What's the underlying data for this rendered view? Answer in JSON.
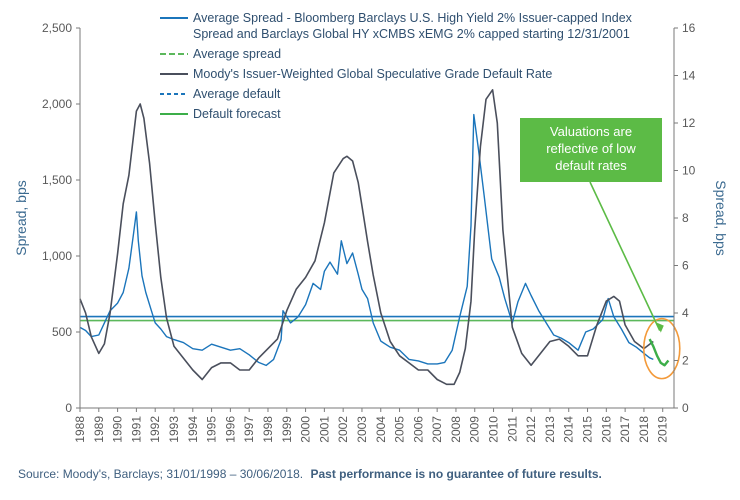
{
  "chart_data": {
    "type": "line",
    "title": "",
    "y_left_label": "Spread, bps",
    "y_right_label": "Spread, bps",
    "y_left_range": [
      0,
      2500
    ],
    "y_left_ticks": [
      "0",
      "500",
      "1,000",
      "1,500",
      "2,000",
      "2,500"
    ],
    "y_right_range": [
      0,
      16
    ],
    "y_right_ticks": [
      "0",
      "2",
      "4",
      "6",
      "8",
      "10",
      "12",
      "14",
      "16"
    ],
    "x_range": [
      1988,
      2019.6
    ],
    "x_ticks": [
      "1988",
      "1989",
      "1990",
      "1991",
      "1992",
      "1993",
      "1994",
      "1995",
      "1996",
      "1997",
      "1998",
      "1999",
      "2000",
      "2001",
      "2002",
      "2003",
      "2004",
      "2005",
      "2006",
      "2007",
      "2008",
      "2009",
      "2010",
      "2011",
      "2012",
      "2013",
      "2014",
      "2015",
      "2016",
      "2017",
      "2018",
      "2019"
    ],
    "grid": false,
    "legend_position": "top",
    "colors": {
      "spread": "#1b75bb",
      "avg_spread": "#5cb85c",
      "default_rate": "#4a4f5c",
      "avg_default": "#1b75bb",
      "forecast": "#3cae49",
      "callout_bg": "#5cbb46",
      "highlight": "#f39a3a"
    },
    "legend": [
      {
        "key": "spread",
        "lines": [
          "Average Spread - Bloomberg Barclays U.S. High Yield 2% Issuer-capped Index",
          "Spread and Barclays Global HY xCMBS xEMG 2% capped starting 12/31/2001"
        ]
      },
      {
        "key": "avg_spread",
        "lines": [
          "Average spread"
        ]
      },
      {
        "key": "default_rate",
        "lines": [
          "Moody's Issuer-Weighted Global Speculative Grade Default Rate"
        ]
      },
      {
        "key": "avg_default",
        "lines": [
          "Average default"
        ]
      },
      {
        "key": "forecast",
        "lines": [
          "Default forecast"
        ]
      }
    ],
    "average_spread_bps": 575,
    "average_default_pct": 3.85,
    "series": [
      {
        "name": "Average Spread - Bloomberg Barclays U.S. High Yield 2% Issuer-capped Index Spread and Barclays Global HY xCMBS xEMG 2% capped starting 12/31/2001",
        "axis": "left",
        "x": [
          1988.0,
          1988.3,
          1988.6,
          1989.0,
          1989.3,
          1989.6,
          1990.0,
          1990.3,
          1990.6,
          1990.85,
          1991.0,
          1991.1,
          1991.3,
          1991.5,
          1991.8,
          1992.0,
          1992.3,
          1992.6,
          1993.0,
          1993.5,
          1994.0,
          1994.5,
          1995.0,
          1995.5,
          1996.0,
          1996.5,
          1997.0,
          1997.5,
          1997.9,
          1998.3,
          1998.7,
          1998.8,
          1999.2,
          1999.6,
          2000.0,
          2000.4,
          2000.8,
          2001.0,
          2001.3,
          2001.7,
          2001.9,
          2002.2,
          2002.5,
          2002.8,
          2003.0,
          2003.3,
          2003.6,
          2004.0,
          2004.5,
          2005.0,
          2005.5,
          2006.0,
          2006.5,
          2007.0,
          2007.4,
          2007.8,
          2008.2,
          2008.6,
          2008.8,
          2008.95,
          2009.2,
          2009.5,
          2009.9,
          2010.3,
          2010.6,
          2011.0,
          2011.3,
          2011.7,
          2012.0,
          2012.4,
          2012.8,
          2013.2,
          2013.6,
          2014.0,
          2014.5,
          2014.9,
          2015.3,
          2015.8,
          2016.1,
          2016.4,
          2016.8,
          2017.2,
          2017.6,
          2018.0,
          2018.3,
          2018.5
        ],
        "values": [
          530,
          510,
          470,
          480,
          560,
          640,
          690,
          760,
          920,
          1150,
          1290,
          1100,
          870,
          760,
          640,
          560,
          520,
          470,
          450,
          430,
          390,
          380,
          420,
          400,
          380,
          390,
          350,
          300,
          280,
          320,
          450,
          640,
          560,
          600,
          680,
          820,
          780,
          900,
          960,
          880,
          1100,
          950,
          1020,
          880,
          780,
          720,
          560,
          440,
          400,
          380,
          320,
          310,
          290,
          290,
          300,
          380,
          600,
          800,
          1200,
          1930,
          1700,
          1400,
          980,
          860,
          720,
          560,
          700,
          820,
          740,
          640,
          560,
          480,
          460,
          430,
          380,
          500,
          520,
          580,
          720,
          600,
          520,
          430,
          400,
          360,
          330,
          320
        ]
      },
      {
        "name": "Moody's Issuer-Weighted Global Speculative Grade Default Rate",
        "axis": "right",
        "x": [
          1988.0,
          1988.3,
          1988.6,
          1989.0,
          1989.3,
          1989.6,
          1990.0,
          1990.3,
          1990.6,
          1991.0,
          1991.2,
          1991.4,
          1991.7,
          1992.0,
          1992.3,
          1992.6,
          1993.0,
          1993.5,
          1994.0,
          1994.5,
          1995.0,
          1995.5,
          1996.0,
          1996.5,
          1997.0,
          1997.5,
          1998.0,
          1998.5,
          1999.0,
          1999.5,
          2000.0,
          2000.5,
          2001.0,
          2001.5,
          2002.0,
          2002.2,
          2002.5,
          2002.8,
          2003.0,
          2003.3,
          2003.6,
          2004.0,
          2004.5,
          2005.0,
          2005.5,
          2006.0,
          2006.5,
          2007.0,
          2007.5,
          2007.9,
          2008.2,
          2008.5,
          2008.8,
          2009.0,
          2009.3,
          2009.6,
          2009.95,
          2010.2,
          2010.5,
          2010.8,
          2011.0,
          2011.5,
          2012.0,
          2012.5,
          2013.0,
          2013.5,
          2014.0,
          2014.5,
          2015.0,
          2015.5,
          2016.0,
          2016.4,
          2016.7,
          2017.0,
          2017.5,
          2018.0,
          2018.5
        ],
        "values": [
          4.6,
          4.0,
          3.0,
          2.3,
          2.7,
          4.0,
          6.5,
          8.6,
          9.8,
          12.5,
          12.8,
          12.2,
          10.3,
          7.8,
          5.5,
          3.8,
          2.6,
          2.1,
          1.6,
          1.2,
          1.7,
          1.9,
          1.9,
          1.6,
          1.6,
          2.1,
          2.5,
          2.9,
          4.1,
          5.0,
          5.5,
          6.2,
          7.8,
          9.9,
          10.5,
          10.6,
          10.4,
          9.5,
          8.5,
          7.0,
          5.6,
          4.0,
          2.8,
          2.2,
          1.9,
          1.6,
          1.6,
          1.2,
          1.0,
          1.0,
          1.5,
          2.5,
          4.5,
          7.5,
          11.0,
          13.0,
          13.4,
          12.0,
          7.5,
          5.0,
          3.4,
          2.3,
          1.8,
          2.3,
          2.8,
          2.9,
          2.6,
          2.2,
          2.2,
          3.5,
          4.5,
          4.7,
          4.5,
          3.5,
          2.8,
          2.5,
          2.8
        ]
      },
      {
        "name": "Default forecast",
        "axis": "right",
        "x": [
          2018.3,
          2018.5,
          2018.7,
          2018.9,
          2019.1,
          2019.3
        ],
        "values": [
          2.9,
          2.6,
          2.2,
          1.9,
          1.8,
          2.0
        ]
      }
    ],
    "callout_text": [
      "Valuations are",
      "reflective of low",
      "default rates"
    ],
    "source_text": "Source: Moody's, Barclays; 31/01/1998 – 30/06/2018.",
    "source_bold": "Past performance is no guarantee of future results."
  }
}
